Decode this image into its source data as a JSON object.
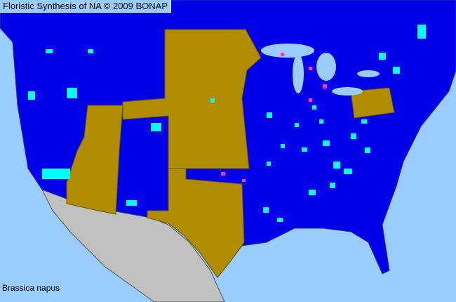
{
  "header": {
    "title": "Floristic Synthesis of NA © 2009 BONAP"
  },
  "map": {
    "species": "Brassica napus",
    "colors": {
      "water": "#99ccff",
      "present": "#0000e8",
      "state_present": "#b08c00",
      "county_present": "#00ffff",
      "noxious": "#ff33cc",
      "no_data": "#c0c0c0",
      "borders": "#3a3a8a"
    }
  }
}
